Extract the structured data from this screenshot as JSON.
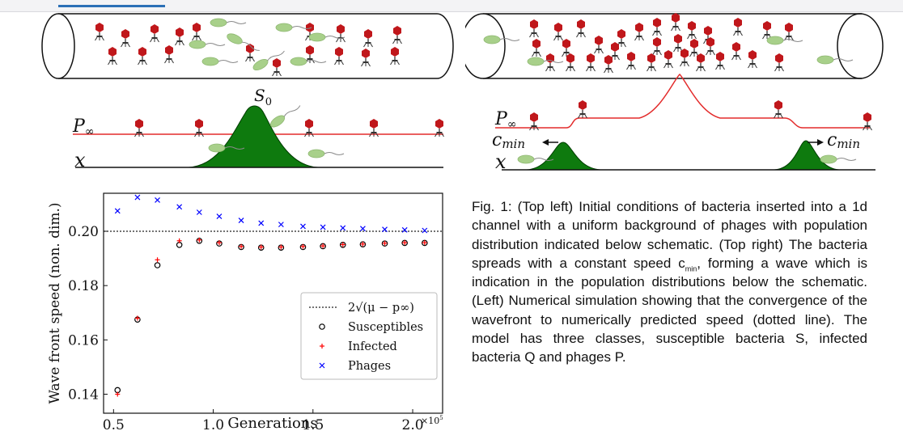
{
  "left_schematic": {
    "S0": "S",
    "S0_sub": "0",
    "P_inf": "P",
    "P_inf_sub": "∞",
    "x_label": "x"
  },
  "right_schematic": {
    "P_inf": "P",
    "P_inf_sub": "∞",
    "x_label": "x",
    "c_min_left": "c",
    "c_min_left_sub": "min",
    "c_min_right": "c",
    "c_min_right_sub": "min"
  },
  "caption": {
    "part1": "Fig. 1: (Top left) Initial conditions of bacteria inserted into a 1d channel with a uniform background of phages with population distribution indicated below schematic. (Top right) The bacteria spreads with a constant speed c",
    "sub": "min",
    "part2": ", forming a wave which is indication in the population distributions below the schematic. (Left) Numerical simulation showing that the convergence of the wavefront to numerically predicted speed (dotted line). The model has three classes, susceptible bacteria S, infected bacteria Q and phages P."
  },
  "chart_data": {
    "type": "scatter",
    "xlabel": "Generations",
    "ylabel": "Wave front speed (non. dim.)",
    "x_multiplier": "×10",
    "x_multiplier_exp": "5",
    "xlim": [
      0.45,
      2.15
    ],
    "ylim": [
      0.133,
      0.214
    ],
    "xticks": [
      "0.5",
      "1.0",
      "1.5",
      "2.0"
    ],
    "yticks": [
      "0.14",
      "0.16",
      "0.18",
      "0.20"
    ],
    "reference_line": {
      "y": 0.2,
      "legend": "2√(μ − p∞)"
    },
    "legend_position": "lower-right",
    "x": [
      0.52,
      0.62,
      0.72,
      0.83,
      0.93,
      1.03,
      1.14,
      1.24,
      1.34,
      1.45,
      1.55,
      1.65,
      1.75,
      1.86,
      1.96,
      2.06
    ],
    "series": [
      {
        "name": "Susceptibles",
        "marker": "circle",
        "color": "#000000",
        "values": [
          0.1415,
          0.1675,
          0.1875,
          0.195,
          0.1965,
          0.1955,
          0.1942,
          0.194,
          0.194,
          0.1942,
          0.1945,
          0.195,
          0.1952,
          0.1955,
          0.1957,
          0.1957
        ]
      },
      {
        "name": "Infected",
        "marker": "plus",
        "color": "#ff0000",
        "values": [
          0.14,
          0.168,
          0.1895,
          0.1965,
          0.1968,
          0.1958,
          0.1944,
          0.1942,
          0.1942,
          0.1944,
          0.1946,
          0.1951,
          0.1953,
          0.1956,
          0.1958,
          0.1958
        ]
      },
      {
        "name": "Phages",
        "marker": "x",
        "color": "#0000ff",
        "values": [
          0.2075,
          0.2125,
          0.2115,
          0.209,
          0.207,
          0.2055,
          0.204,
          0.203,
          0.2025,
          0.2018,
          0.2015,
          0.2012,
          0.201,
          0.2007,
          0.2005,
          0.2003
        ]
      }
    ]
  }
}
